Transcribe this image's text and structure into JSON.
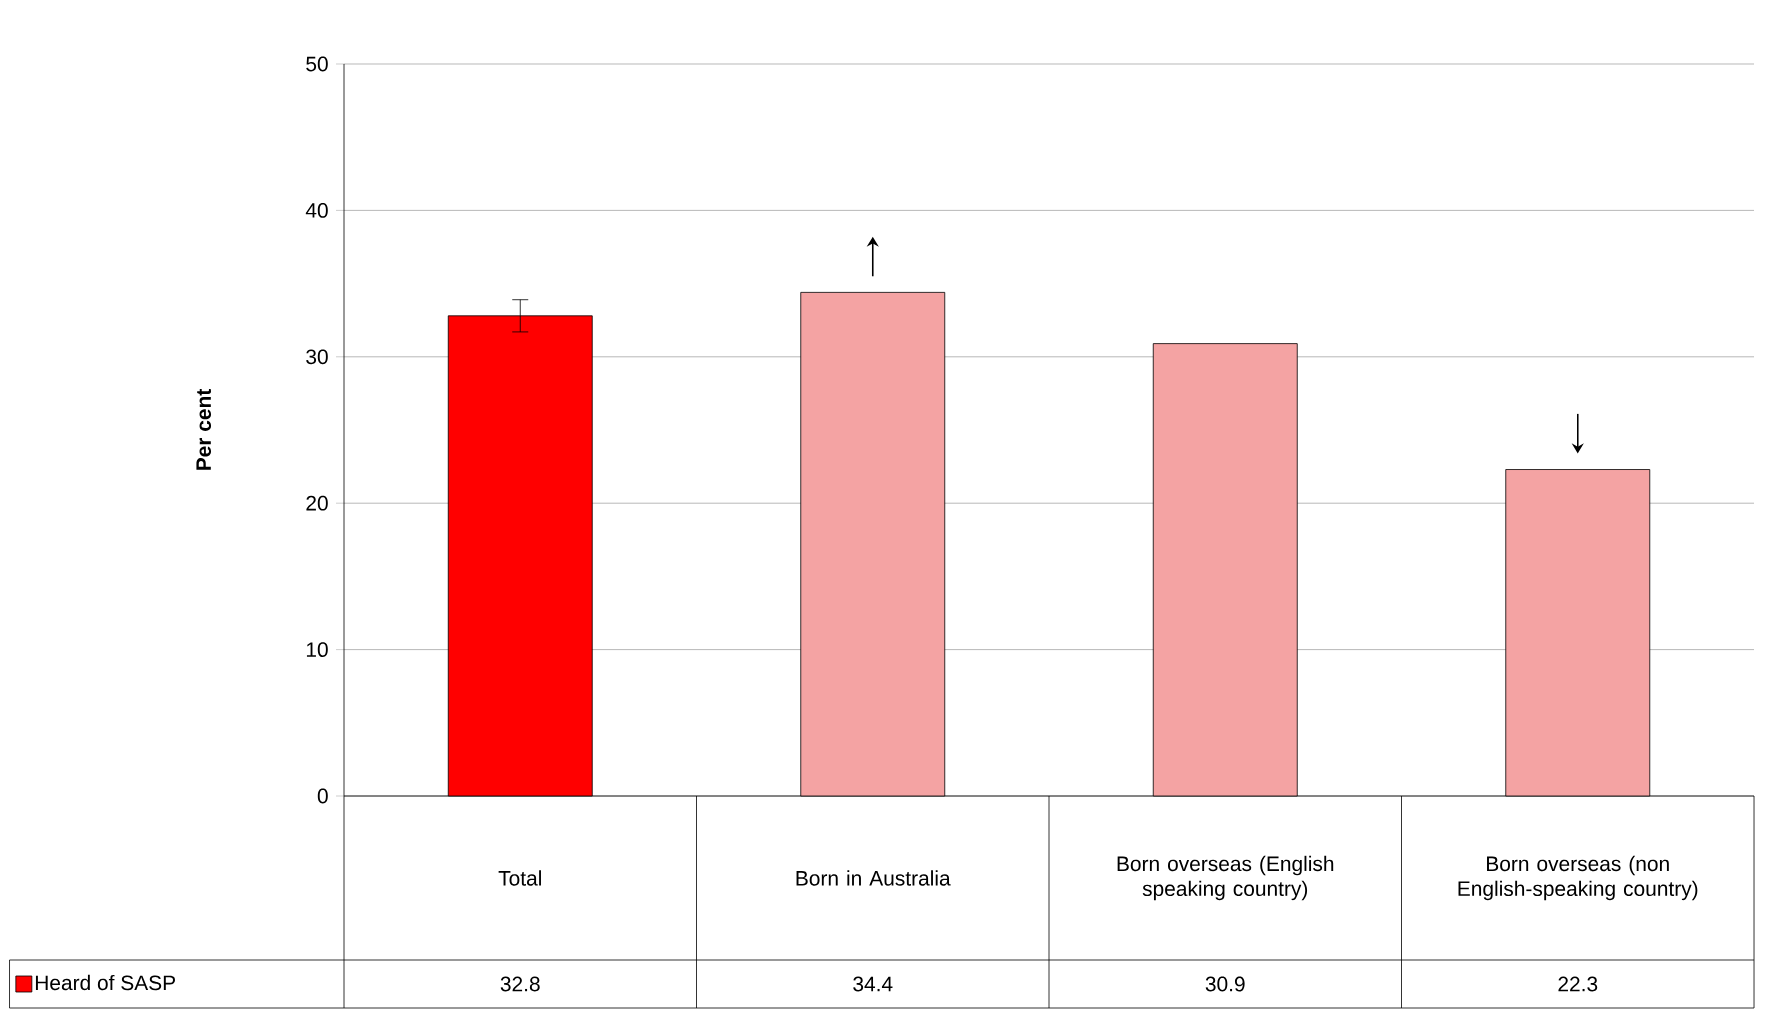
{
  "chart_data": {
    "type": "bar",
    "ylabel": "Per cent",
    "categories": [
      "Total",
      "Born in Australia",
      "Born overseas (English speaking country)",
      "Born overseas (non English-speaking country)"
    ],
    "series": [
      {
        "name": "Heard of SASP",
        "values": [
          32.8,
          34.4,
          30.9,
          22.3
        ],
        "colors": [
          "#ff0000",
          "#f4a3a3",
          "#f4a3a3",
          "#f4a3a3"
        ],
        "errors": [
          [
            31.7,
            33.9
          ],
          null,
          null,
          null
        ]
      }
    ],
    "ylim": [
      0,
      50
    ],
    "yticks": [
      0,
      10,
      20,
      30,
      40,
      50
    ],
    "grid": "y",
    "legend": "bottom left",
    "data_labels": true
  }
}
